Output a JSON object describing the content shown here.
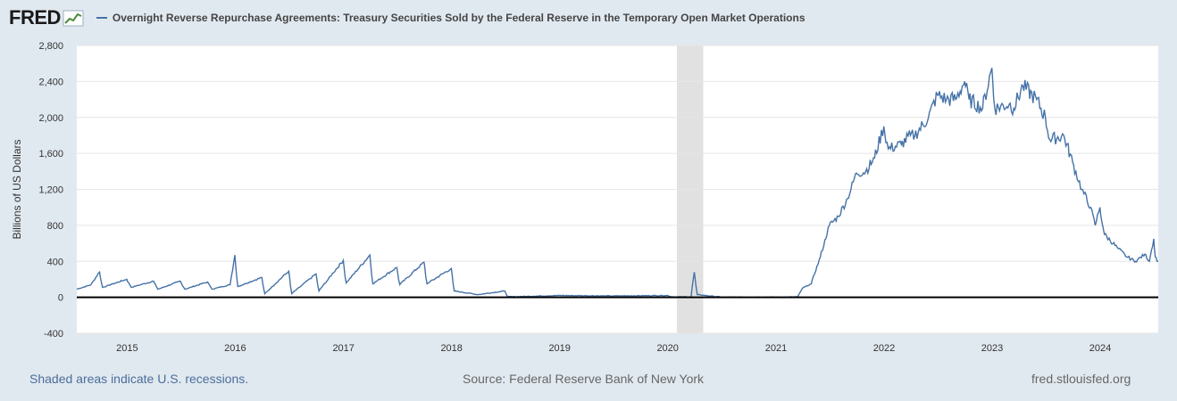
{
  "header": {
    "logo": "FRED",
    "legend_label": "Overnight Reverse Repurchase Agreements: Treasury Securities Sold by the Federal Reserve in the Temporary Open Market Operations",
    "series_color": "#4572a7"
  },
  "footer": {
    "recession_note": "Shaded areas indicate U.S. recessions.",
    "source": "Source: Federal Reserve Bank of New York",
    "site": "fred.stlouisfed.org"
  },
  "chart_data": {
    "type": "line",
    "title": "",
    "xlabel": "",
    "ylabel": "Billions of US Dollars",
    "xlim": [
      "2014-07-15",
      "2024-07-15"
    ],
    "ylim": [
      -400,
      2800
    ],
    "y_ticks": [
      "-400",
      "0",
      "400",
      "800",
      "1,200",
      "1,600",
      "2,000",
      "2,400",
      "2,800"
    ],
    "x_ticks": [
      "2015",
      "2016",
      "2017",
      "2018",
      "2019",
      "2020",
      "2021",
      "2022",
      "2023",
      "2024"
    ],
    "grid": "horizontal",
    "recessions": [
      {
        "start": "2020-02-01",
        "end": "2020-04-30"
      }
    ],
    "series": [
      {
        "color": "#4572a7",
        "points": [
          [
            "2014-07-15",
            90
          ],
          [
            "2014-09-01",
            140
          ],
          [
            "2014-09-30",
            280
          ],
          [
            "2014-10-10",
            110
          ],
          [
            "2014-11-15",
            150
          ],
          [
            "2014-12-31",
            200
          ],
          [
            "2015-01-15",
            110
          ],
          [
            "2015-03-31",
            180
          ],
          [
            "2015-04-15",
            90
          ],
          [
            "2015-06-30",
            180
          ],
          [
            "2015-07-15",
            90
          ],
          [
            "2015-09-30",
            170
          ],
          [
            "2015-10-15",
            90
          ],
          [
            "2015-12-15",
            140
          ],
          [
            "2015-12-31",
            470
          ],
          [
            "2016-01-10",
            120
          ],
          [
            "2016-03-31",
            220
          ],
          [
            "2016-04-10",
            40
          ],
          [
            "2016-06-30",
            290
          ],
          [
            "2016-07-10",
            40
          ],
          [
            "2016-09-30",
            260
          ],
          [
            "2016-10-10",
            70
          ],
          [
            "2016-12-31",
            410
          ],
          [
            "2017-01-10",
            160
          ],
          [
            "2017-03-31",
            470
          ],
          [
            "2017-04-10",
            150
          ],
          [
            "2017-06-30",
            330
          ],
          [
            "2017-07-10",
            140
          ],
          [
            "2017-09-30",
            390
          ],
          [
            "2017-10-10",
            150
          ],
          [
            "2017-12-31",
            320
          ],
          [
            "2018-01-10",
            70
          ],
          [
            "2018-03-31",
            30
          ],
          [
            "2018-06-30",
            70
          ],
          [
            "2018-07-10",
            5
          ],
          [
            "2018-12-31",
            20
          ],
          [
            "2019-06-30",
            15
          ],
          [
            "2019-12-31",
            20
          ],
          [
            "2020-01-15",
            5
          ],
          [
            "2020-03-20",
            5
          ],
          [
            "2020-03-31",
            280
          ],
          [
            "2020-04-10",
            30
          ],
          [
            "2020-06-30",
            2
          ],
          [
            "2021-01-31",
            1
          ],
          [
            "2021-03-15",
            5
          ],
          [
            "2021-03-31",
            100
          ],
          [
            "2021-04-30",
            150
          ],
          [
            "2021-05-31",
            450
          ],
          [
            "2021-06-30",
            800
          ],
          [
            "2021-07-31",
            900
          ],
          [
            "2021-08-31",
            1100
          ],
          [
            "2021-09-30",
            1380
          ],
          [
            "2021-10-31",
            1400
          ],
          [
            "2021-11-30",
            1550
          ],
          [
            "2021-12-31",
            1900
          ],
          [
            "2022-01-15",
            1650
          ],
          [
            "2022-02-28",
            1700
          ],
          [
            "2022-03-31",
            1800
          ],
          [
            "2022-04-15",
            1800
          ],
          [
            "2022-05-31",
            2000
          ],
          [
            "2022-06-30",
            2250
          ],
          [
            "2022-07-31",
            2200
          ],
          [
            "2022-08-31",
            2200
          ],
          [
            "2022-09-30",
            2400
          ],
          [
            "2022-10-15",
            2200
          ],
          [
            "2022-11-30",
            2100
          ],
          [
            "2022-12-31",
            2550
          ],
          [
            "2023-01-10",
            2100
          ],
          [
            "2023-02-28",
            2150
          ],
          [
            "2023-03-15",
            2100
          ],
          [
            "2023-04-15",
            2350
          ],
          [
            "2023-05-31",
            2200
          ],
          [
            "2023-06-30",
            2000
          ],
          [
            "2023-07-15",
            1750
          ],
          [
            "2023-08-31",
            1800
          ],
          [
            "2023-09-30",
            1500
          ],
          [
            "2023-10-31",
            1200
          ],
          [
            "2023-11-30",
            1000
          ],
          [
            "2023-12-15",
            800
          ],
          [
            "2023-12-31",
            1000
          ],
          [
            "2024-01-15",
            700
          ],
          [
            "2024-02-28",
            550
          ],
          [
            "2024-03-31",
            450
          ],
          [
            "2024-04-30",
            400
          ],
          [
            "2024-05-31",
            480
          ],
          [
            "2024-06-15",
            400
          ],
          [
            "2024-06-30",
            650
          ],
          [
            "2024-07-05",
            450
          ],
          [
            "2024-07-15",
            400
          ]
        ]
      }
    ]
  }
}
